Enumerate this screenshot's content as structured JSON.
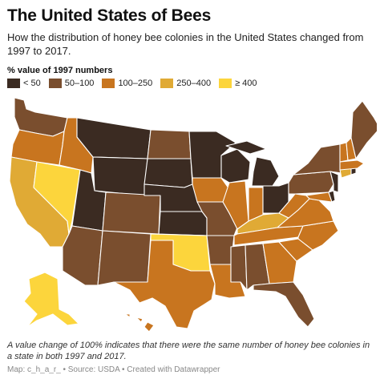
{
  "title": "The United States of Bees",
  "subtitle": "How the distribution of honey bee colonies in the United States changed from 1997 to 2017.",
  "legend": {
    "title": "% value of 1997 numbers",
    "items": [
      {
        "label": "< 50",
        "color": "#3b2b22"
      },
      {
        "label": "50–100",
        "color": "#7a4e2e"
      },
      {
        "label": "100–250",
        "color": "#c8751f"
      },
      {
        "label": "250–400",
        "color": "#e0aa35"
      },
      {
        "label": "≥ 400",
        "color": "#fcd53c"
      }
    ]
  },
  "map_data": {
    "type": "choropleth",
    "region": "United States",
    "category_by_state": {
      "WA": "50–100",
      "OR": "100–250",
      "CA": "250–400",
      "NV": "≥ 400",
      "ID": "100–250",
      "MT": "< 50",
      "WY": "< 50",
      "UT": "< 50",
      "AZ": "50–100",
      "CO": "50–100",
      "NM": "50–100",
      "ND": "50–100",
      "SD": "< 50",
      "NE": "< 50",
      "KS": "< 50",
      "OK": "≥ 400",
      "TX": "100–250",
      "MN": "< 50",
      "IA": "100–250",
      "MO": "50–100",
      "AR": "50–100",
      "LA": "100–250",
      "WI": "< 50",
      "IL": "100–250",
      "MI": "< 50",
      "IN": "100–250",
      "OH": "< 50",
      "KY": "250–400",
      "TN": "100–250",
      "MS": "50–100",
      "AL": "50–100",
      "GA": "100–250",
      "FL": "50–100",
      "SC": "100–250",
      "NC": "100–250",
      "VA": "100–250",
      "WV": "100–250",
      "PA": "50–100",
      "NY": "50–100",
      "VT": "100–250",
      "NH": "100–250",
      "ME": "50–100",
      "MA": "100–250",
      "RI": "< 50",
      "CT": "250–400",
      "NJ": "< 50",
      "DE": "< 50",
      "MD": "100–250",
      "AK": "≥ 400",
      "HI": "100–250"
    }
  },
  "note": "A value change of 100% indicates that there were the same number of honey bee colonies in a state in both 1997 and 2017.",
  "footer": "Map: c_h_a_r_ • Source: USDA • Created with Datawrapper"
}
